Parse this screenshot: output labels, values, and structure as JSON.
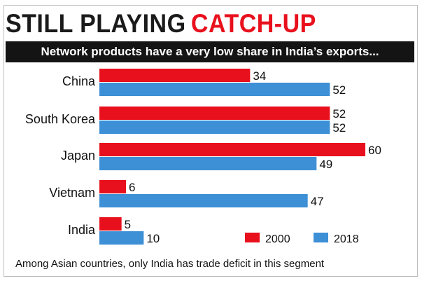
{
  "header": {
    "title_part1": "STILL PLAYING",
    "title_part2": "CATCH-UP",
    "subtitle": "Network products have a very low share in India’s exports..."
  },
  "footnote": "Among Asian countries, only India has trade deficit in this segment",
  "chart_data": {
    "type": "bar",
    "orientation": "horizontal",
    "categories": [
      "China",
      "South Korea",
      "Japan",
      "Vietnam",
      "India"
    ],
    "series": [
      {
        "name": "2000",
        "color": "#e8101c",
        "values": [
          34,
          52,
          60,
          6,
          5
        ]
      },
      {
        "name": "2018",
        "color": "#3d8fd6",
        "values": [
          52,
          52,
          49,
          47,
          10
        ]
      }
    ],
    "xlim": [
      0,
      60
    ],
    "grid": false,
    "legend_position": "bottom-right"
  }
}
